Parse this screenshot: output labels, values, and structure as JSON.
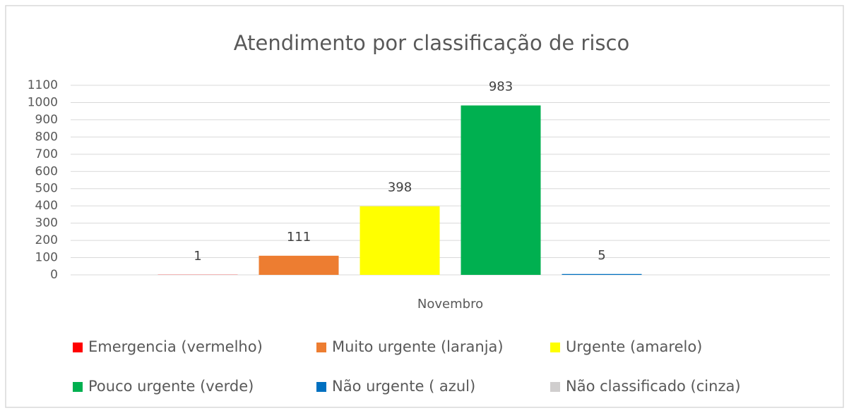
{
  "chart_data": {
    "type": "bar",
    "title": "Atendimento por classificação de risco",
    "categories": [
      "Novembro"
    ],
    "series": [
      {
        "name": "Emergencia (vermelho)",
        "color": "#ff0000",
        "values": [
          1
        ]
      },
      {
        "name": "Muito urgente (laranja)",
        "color": "#ed7d31",
        "values": [
          111
        ]
      },
      {
        "name": "Urgente (amarelo)",
        "color": "#ffff00",
        "values": [
          398
        ]
      },
      {
        "name": "Pouco urgente (verde)",
        "color": "#00b050",
        "values": [
          983
        ]
      },
      {
        "name": "Não urgente ( azul)",
        "color": "#0070c0",
        "values": [
          5
        ]
      },
      {
        "name": "Não classificado (cinza)",
        "color": "#d0cece",
        "values": [
          null
        ]
      }
    ],
    "ylim": [
      0,
      1100
    ],
    "yticks": [
      0,
      100,
      200,
      300,
      400,
      500,
      600,
      700,
      800,
      900,
      1000,
      1100
    ],
    "grid": true,
    "legend": "bottom"
  }
}
